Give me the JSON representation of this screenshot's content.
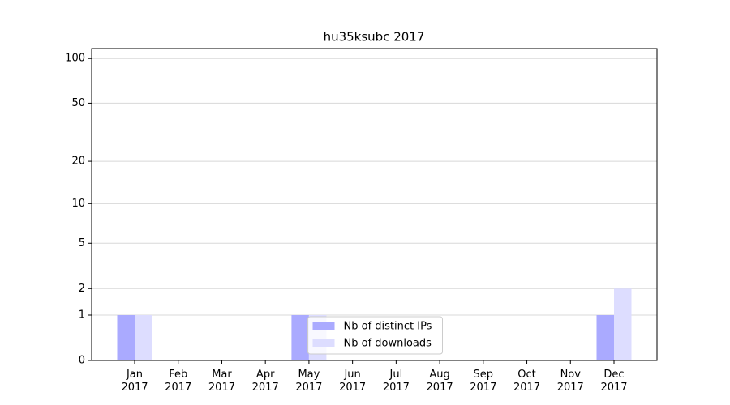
{
  "chart_data": {
    "type": "bar",
    "title": "hu35ksubc 2017",
    "categories": [
      "Jan 2017",
      "Feb 2017",
      "Mar 2017",
      "Apr 2017",
      "May 2017",
      "Jun 2017",
      "Jul 2017",
      "Aug 2017",
      "Sep 2017",
      "Oct 2017",
      "Nov 2017",
      "Dec 2017"
    ],
    "series": [
      {
        "name": "Nb of distinct IPs",
        "color": "#aaaaff",
        "values": [
          1,
          0,
          0,
          0,
          1,
          0,
          0,
          0,
          0,
          0,
          0,
          1
        ]
      },
      {
        "name": "Nb of downloads",
        "color": "#ddddff",
        "values": [
          1,
          0,
          0,
          0,
          1,
          0,
          0,
          0,
          0,
          0,
          0,
          2
        ]
      }
    ],
    "yscale": "log1p",
    "ylim": [
      0,
      116.5
    ],
    "yticks": [
      0,
      1,
      2,
      5,
      10,
      20,
      50,
      100
    ],
    "grid": true,
    "legend": "lower center"
  }
}
